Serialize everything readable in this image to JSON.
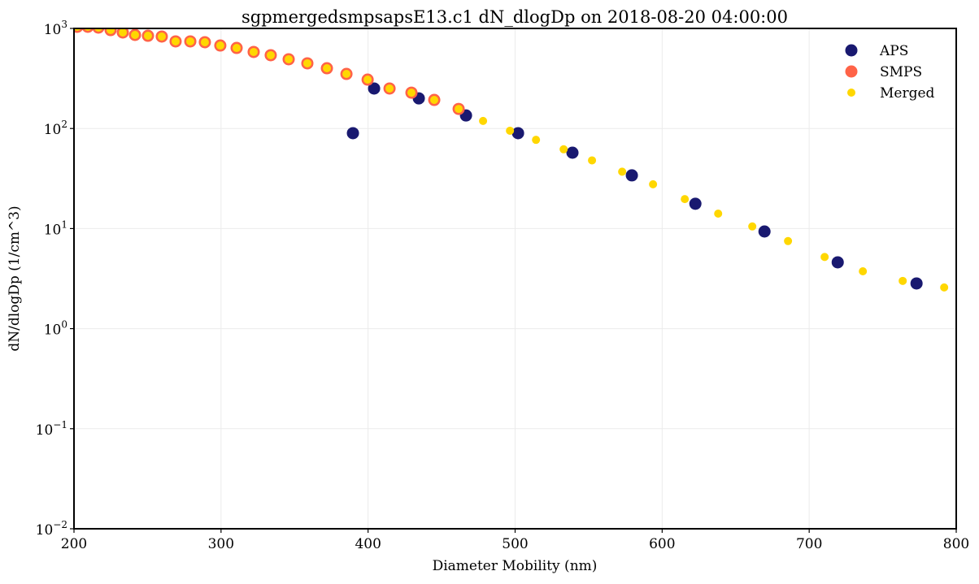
{
  "chart_data": {
    "type": "scatter",
    "title": "sgpmergedsmpsapsE13.c1 dN_dlogDp on 2018-08-20 04:00:00",
    "xlabel": "Diameter Mobility (nm)",
    "ylabel": "dN/dlogDp (1/cm^3)",
    "xlim": [
      200,
      800
    ],
    "ylim": [
      0.01,
      1000
    ],
    "yscale": "log",
    "grid": true,
    "legend_position": "top-right",
    "xticks": [
      200,
      300,
      400,
      500,
      600,
      700,
      800
    ],
    "yticks": [
      {
        "value": 0.01,
        "base": "10",
        "exp": "−2"
      },
      {
        "value": 0.1,
        "base": "10",
        "exp": "−1"
      },
      {
        "value": 1,
        "base": "10",
        "exp": "0"
      },
      {
        "value": 10,
        "base": "10",
        "exp": "1"
      },
      {
        "value": 100,
        "base": "10",
        "exp": "2"
      },
      {
        "value": 1000,
        "base": "10",
        "exp": "3"
      }
    ],
    "series": [
      {
        "name": "APS",
        "color": "#191970",
        "x": [
          389.7,
          404.1,
          434.5,
          466.6,
          502.0,
          539.0,
          579.4,
          622.6,
          669.6,
          719.4,
          773.0
        ],
        "y": [
          89.8,
          251,
          200,
          135,
          89.8,
          57.3,
          34.0,
          17.7,
          9.35,
          4.6,
          2.83
        ]
      },
      {
        "name": "SMPS",
        "color": "#ff6347",
        "x": [
          202.2,
          209.4,
          216.6,
          224.9,
          233.2,
          241.5,
          250.3,
          259.7,
          269.1,
          279.1,
          289.0,
          299.5,
          310.6,
          322.2,
          333.8,
          346.0,
          358.7,
          372.0,
          385.3,
          399.7,
          414.6,
          429.5,
          445.0,
          461.6
        ],
        "y": [
          1038,
          1038,
          1019,
          963,
          911,
          861,
          845,
          830,
          742,
          742,
          728,
          675,
          638,
          582,
          540,
          492,
          448,
          400,
          351,
          308,
          251,
          228,
          193,
          157
        ]
      },
      {
        "name": "Merged",
        "color": "#ffd700",
        "x": [
          202.2,
          209.4,
          216.6,
          224.9,
          233.2,
          241.5,
          250.3,
          259.7,
          269.1,
          279.1,
          289.0,
          299.5,
          310.6,
          322.2,
          333.8,
          346.0,
          358.7,
          372.0,
          385.3,
          399.7,
          414.6,
          429.5,
          445.0,
          461.6,
          478.2,
          496.5,
          514.2,
          533.0,
          552.3,
          572.8,
          593.8,
          615.4,
          638.1,
          661.3,
          685.6,
          710.5,
          736.5,
          763.6,
          791.8
        ],
        "y": [
          1038,
          1038,
          1019,
          963,
          911,
          861,
          845,
          830,
          742,
          742,
          728,
          675,
          638,
          582,
          540,
          492,
          448,
          400,
          351,
          308,
          251,
          228,
          193,
          157,
          119,
          95,
          77,
          62,
          48,
          37,
          27.7,
          19.7,
          14.1,
          10.5,
          7.5,
          5.2,
          3.74,
          3.0,
          2.58
        ]
      }
    ]
  }
}
